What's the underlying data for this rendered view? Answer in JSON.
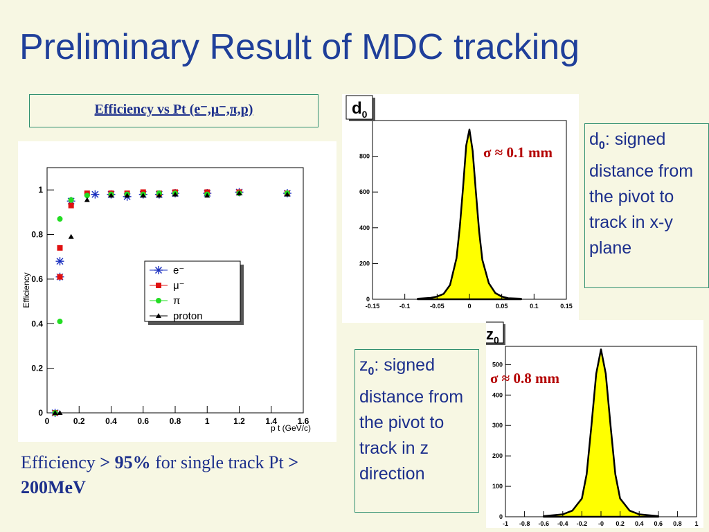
{
  "slide": {
    "title": "Preliminary Result of MDC tracking",
    "subtitle": "Efficiency vs Pt  (e⁻,μ⁻,π,p)",
    "summary": {
      "text1": "Efficiency ",
      "bold1": "> 95%",
      "text2": " for single track Pt ",
      "bold2": "> 200MeV"
    }
  },
  "notes": {
    "d0": {
      "symbol": "d",
      "sub": "0",
      "text": ": signed distance from the pivot to track in x-y plane"
    },
    "z0": {
      "symbol": "z",
      "sub": "0",
      "text": ": signed distance from the pivot to track in z direction"
    }
  },
  "chart_data": [
    {
      "type": "scatter",
      "title": "",
      "xlabel": "p_t (GeV/c)",
      "ylabel": "Efficiency",
      "xlim": [
        0,
        1.6
      ],
      "ylim": [
        0,
        1.1
      ],
      "xticks": [
        "0",
        "0.2",
        "0.4",
        "0.6",
        "0.8",
        "1",
        "1.2",
        "1.4",
        "1.6"
      ],
      "yticks": [
        "0",
        "0.2",
        "0.4",
        "0.6",
        "0.8",
        "1"
      ],
      "legend_position": "center-right",
      "series": [
        {
          "name": "e⁻",
          "marker": "star",
          "color": "#1a2fbf",
          "x": [
            0.05,
            0.08,
            0.08,
            0.15,
            0.3,
            0.4,
            0.5,
            0.6,
            0.7,
            0.8,
            1.0,
            1.2,
            1.5
          ],
          "y": [
            0.0,
            0.68,
            0.61,
            0.95,
            0.98,
            0.98,
            0.97,
            0.98,
            0.98,
            0.985,
            0.985,
            0.99,
            0.985
          ]
        },
        {
          "name": "μ⁻",
          "marker": "square",
          "color": "#e01010",
          "x": [
            0.05,
            0.08,
            0.08,
            0.15,
            0.25,
            0.4,
            0.5,
            0.6,
            0.7,
            0.8,
            1.0,
            1.2,
            1.5
          ],
          "y": [
            0.0,
            0.74,
            0.61,
            0.93,
            0.985,
            0.985,
            0.985,
            0.99,
            0.985,
            0.99,
            0.99,
            0.99,
            0.985
          ]
        },
        {
          "name": "π",
          "marker": "circle",
          "color": "#22dd22",
          "x": [
            0.05,
            0.08,
            0.08,
            0.15,
            0.25,
            0.4,
            0.5,
            0.6,
            0.7,
            0.8,
            1.0,
            1.2,
            1.5
          ],
          "y": [
            0.0,
            0.87,
            0.41,
            0.955,
            0.975,
            0.98,
            0.98,
            0.98,
            0.985,
            0.985,
            0.98,
            0.985,
            0.985
          ]
        },
        {
          "name": "proton",
          "marker": "triangle",
          "color": "#000000",
          "x": [
            0.05,
            0.08,
            0.15,
            0.25,
            0.4,
            0.5,
            0.6,
            0.7,
            0.8,
            1.0,
            1.2,
            1.5
          ],
          "y": [
            0.0,
            0.0,
            0.79,
            0.955,
            0.975,
            0.975,
            0.975,
            0.975,
            0.98,
            0.975,
            0.985,
            0.98
          ]
        }
      ]
    },
    {
      "type": "bar",
      "title": "d0",
      "annotation": "σ ≈ 0.1 mm",
      "xlim": [
        -0.15,
        0.15
      ],
      "ylim": [
        0,
        1000
      ],
      "xticks": [
        "-0.15",
        "-0.1",
        "-0.05",
        "0",
        "0.05",
        "0.1",
        "0.15"
      ],
      "yticks": [
        "0",
        "200",
        "400",
        "600",
        "800"
      ],
      "fill_color": "#ffff00",
      "x": [
        -0.08,
        -0.06,
        -0.05,
        -0.04,
        -0.03,
        -0.02,
        -0.015,
        -0.01,
        -0.005,
        0.0,
        0.005,
        0.01,
        0.015,
        0.02,
        0.03,
        0.04,
        0.05,
        0.06,
        0.08
      ],
      "y": [
        3,
        8,
        15,
        30,
        80,
        230,
        400,
        620,
        860,
        950,
        830,
        600,
        380,
        220,
        90,
        35,
        15,
        6,
        3
      ]
    },
    {
      "type": "bar",
      "title": "z0",
      "annotation": "σ ≈ 0.8 mm",
      "xlim": [
        -1,
        1
      ],
      "ylim": [
        0,
        560
      ],
      "xticks": [
        "-1",
        "-0.8",
        "-0.6",
        "-0.4",
        "-0.2",
        "-0",
        "0.2",
        "0.4",
        "0.6",
        "0.8",
        "1"
      ],
      "yticks": [
        "0",
        "100",
        "200",
        "300",
        "400",
        "500"
      ],
      "fill_color": "#ffff00",
      "x": [
        -0.6,
        -0.4,
        -0.3,
        -0.2,
        -0.15,
        -0.1,
        -0.05,
        0.0,
        0.05,
        0.1,
        0.15,
        0.2,
        0.3,
        0.4,
        0.6
      ],
      "y": [
        2,
        8,
        20,
        60,
        140,
        300,
        470,
        550,
        470,
        300,
        140,
        60,
        20,
        8,
        2
      ]
    }
  ]
}
